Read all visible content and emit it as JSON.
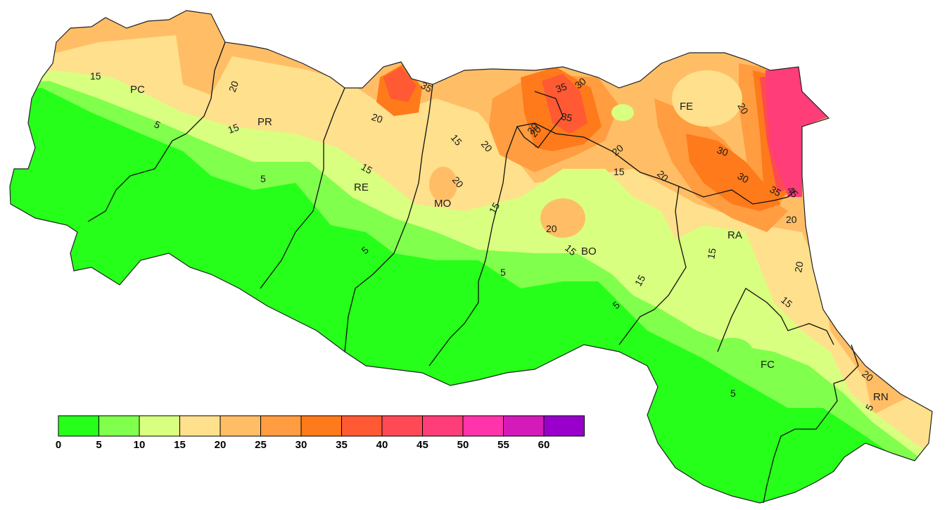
{
  "map": {
    "region": "Emilia-Romagna",
    "provinces": [
      "PC",
      "PR",
      "RE",
      "MO",
      "BO",
      "FE",
      "RA",
      "FC",
      "RN"
    ]
  },
  "legend": {
    "breaks": [
      "0",
      "5",
      "10",
      "15",
      "20",
      "25",
      "30",
      "35",
      "40",
      "45",
      "50",
      "55",
      "60"
    ],
    "colors": [
      "#26ff1a",
      "#80ff4d",
      "#d9ff80",
      "#ffe08c",
      "#ffbe66",
      "#ff9d40",
      "#ff7a1a",
      "#ff5a33",
      "#ff4a55",
      "#ff3d78",
      "#ff33aa",
      "#d41ab9",
      "#9900cc"
    ]
  },
  "contour_labels": [
    "15",
    "5",
    "20",
    "15",
    "5",
    "20",
    "15",
    "5",
    "35",
    "20",
    "15",
    "20",
    "20",
    "15",
    "15",
    "20",
    "5",
    "35",
    "30",
    "35",
    "30",
    "20",
    "15",
    "20",
    "15",
    "5",
    "20",
    "30",
    "30",
    "35",
    "45",
    "20",
    "15",
    "20",
    "15",
    "20",
    "5",
    "5"
  ]
}
